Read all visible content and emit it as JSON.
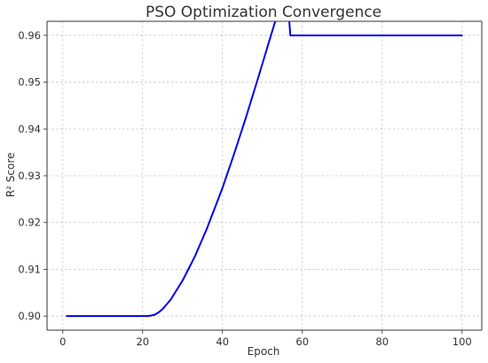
{
  "chart_data": {
    "type": "line",
    "title": "PSO Optimization Convergence",
    "xlabel": "Epoch",
    "ylabel": "R² Score",
    "xlim": [
      -3.95,
      104.95
    ],
    "ylim": [
      0.897,
      0.963
    ],
    "xticks": [
      0,
      20,
      40,
      60,
      80,
      100
    ],
    "yticks": [
      0.9,
      0.91,
      0.92,
      0.93,
      0.94,
      0.95,
      0.96
    ],
    "xtick_labels": [
      "0",
      "20",
      "40",
      "60",
      "80",
      "100"
    ],
    "ytick_labels": [
      "0.90",
      "0.91",
      "0.92",
      "0.93",
      "0.94",
      "0.95",
      "0.96"
    ],
    "grid": true,
    "legend": "none",
    "series": [
      {
        "color": "#0000ee",
        "x": [
          1,
          5,
          10,
          15,
          20,
          21,
          22,
          23,
          24,
          25,
          27,
          30,
          33,
          36,
          40,
          43,
          46,
          49,
          52,
          55,
          56,
          57,
          60,
          65,
          70,
          75,
          80,
          85,
          90,
          95,
          100
        ],
        "y": [
          0.9,
          0.9,
          0.9,
          0.9,
          0.9,
          0.9,
          0.9001,
          0.9003,
          0.9008,
          0.9015,
          0.9035,
          0.9076,
          0.9126,
          0.9185,
          0.9274,
          0.9349,
          0.9428,
          0.9511,
          0.9596,
          0.968,
          0.971,
          0.96,
          0.96,
          0.96,
          0.96,
          0.96,
          0.96,
          0.96,
          0.96,
          0.96,
          0.96
        ]
      }
    ]
  }
}
